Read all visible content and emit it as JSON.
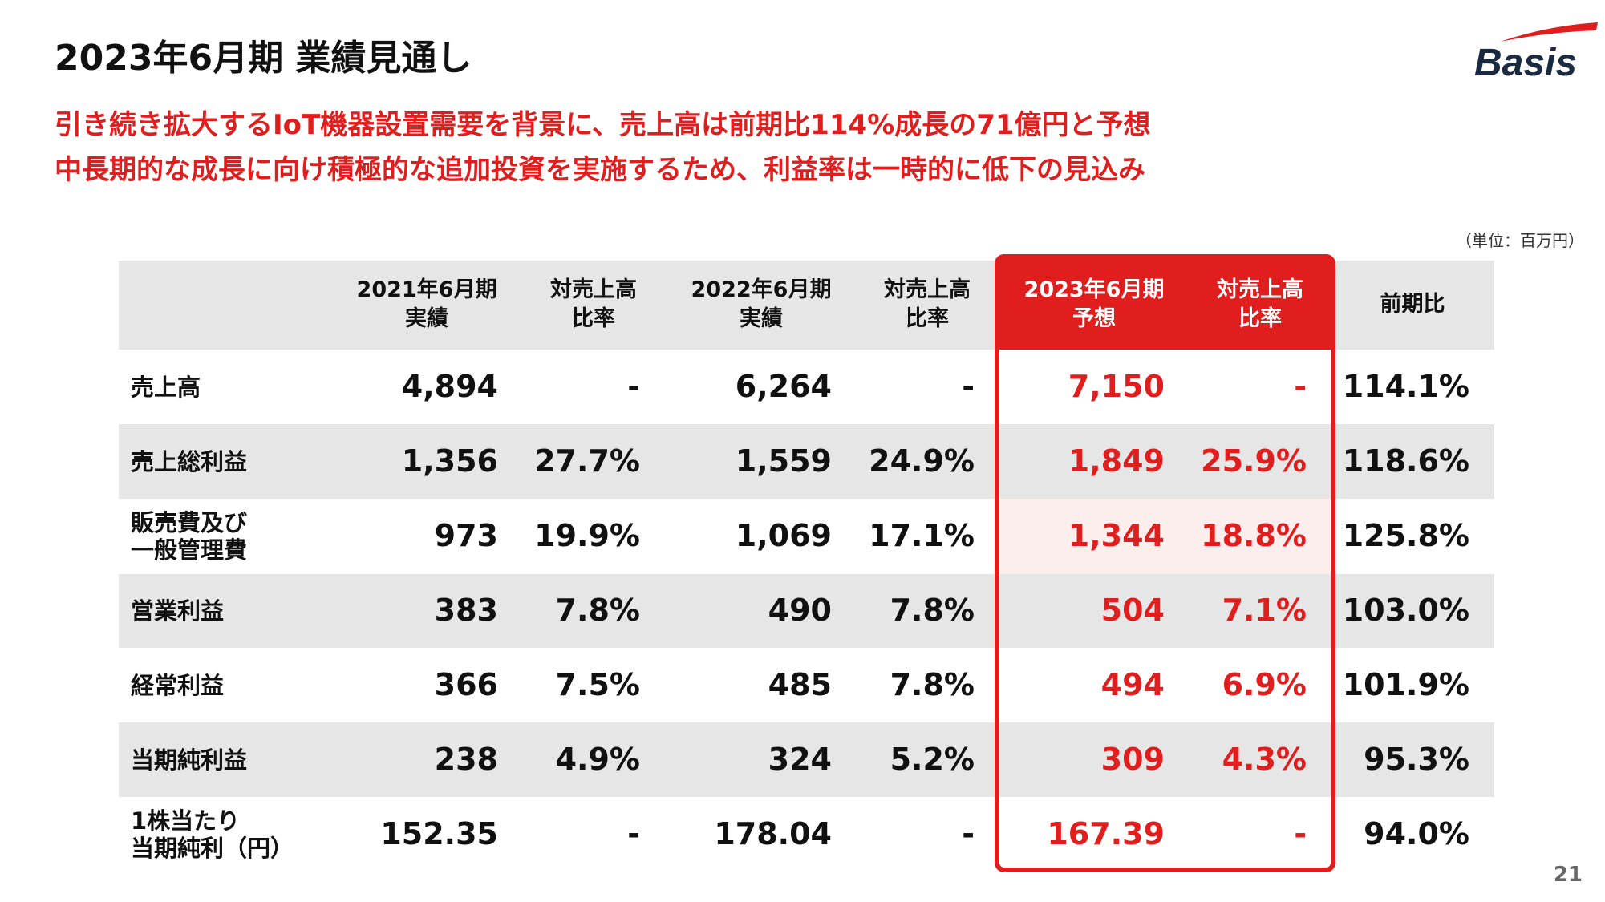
{
  "header": {
    "title": "2023年6月期 業績見通し",
    "subtitle": [
      "引き続き拡大するIoT機器設置需要を背景に、売上高は前期比114%成長の71億円と予想",
      "中長期的な成長に向け積極的な追加投資を実施するため、利益率は一時的に低下の見込み"
    ],
    "logo": "Basis",
    "unit": "（単位：百万円）"
  },
  "table": {
    "columns": [
      [
        "2021年6月期",
        "実績"
      ],
      [
        "対売上高",
        "比率"
      ],
      [
        "2022年6月期",
        "実績"
      ],
      [
        "対売上高",
        "比率"
      ],
      [
        "2023年6月期",
        "予想"
      ],
      [
        "対売上高",
        "比率"
      ],
      [
        "前期比"
      ]
    ],
    "rows": [
      {
        "label": [
          "売上高"
        ],
        "cells": [
          "4,894",
          "-",
          "6,264",
          "-",
          "7,150",
          "-",
          "114.1%"
        ]
      },
      {
        "label": [
          "売上総利益"
        ],
        "cells": [
          "1,356",
          "27.7%",
          "1,559",
          "24.9%",
          "1,849",
          "25.9%",
          "118.6%"
        ]
      },
      {
        "label": [
          "販売費及び",
          "一般管理費"
        ],
        "cells": [
          "973",
          "19.9%",
          "1,069",
          "17.1%",
          "1,344",
          "18.8%",
          "125.8%"
        ]
      },
      {
        "label": [
          "営業利益"
        ],
        "cells": [
          "383",
          "7.8%",
          "490",
          "7.8%",
          "504",
          "7.1%",
          "103.0%"
        ]
      },
      {
        "label": [
          "経常利益"
        ],
        "cells": [
          "366",
          "7.5%",
          "485",
          "7.8%",
          "494",
          "6.9%",
          "101.9%"
        ]
      },
      {
        "label": [
          "当期純利益"
        ],
        "cells": [
          "238",
          "4.9%",
          "324",
          "5.2%",
          "309",
          "4.3%",
          "95.3%"
        ]
      },
      {
        "label": [
          "1株当たり",
          "当期純利（円）"
        ],
        "cells": [
          "152.35",
          "-",
          "178.04",
          "-",
          "167.39",
          "-",
          "94.0%"
        ]
      }
    ]
  },
  "page_number": "21"
}
